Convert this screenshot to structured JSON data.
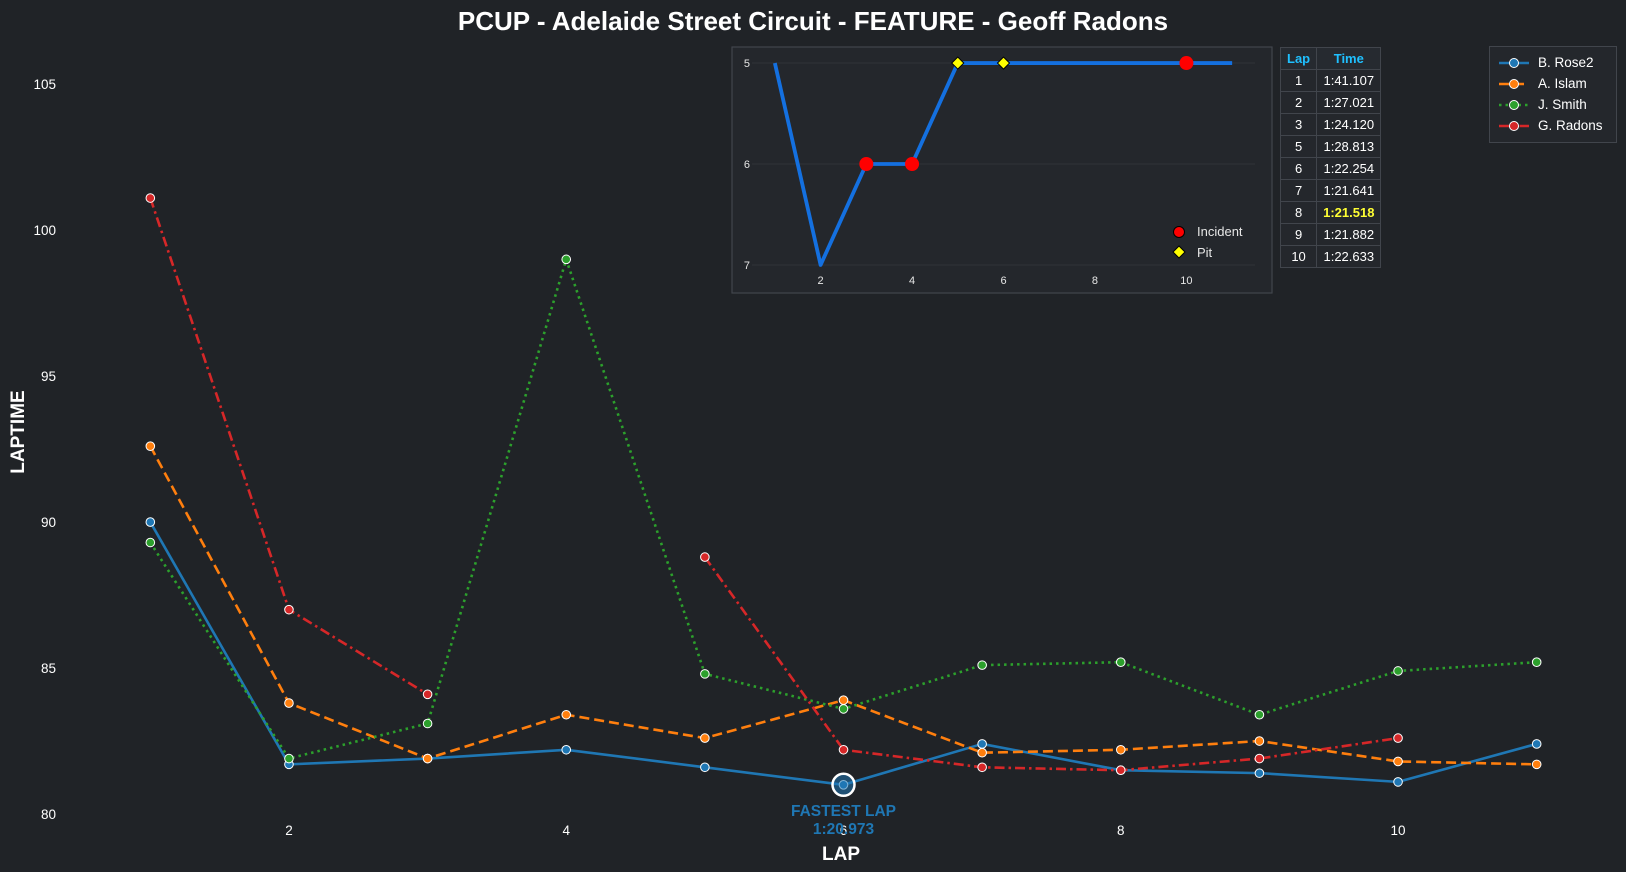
{
  "chart_data": [
    {
      "type": "line",
      "title": "PCUP - Adelaide Street Circuit - FEATURE - Geoff Radons",
      "xlabel": "LAP",
      "ylabel": "LAPTIME",
      "x": [
        1,
        2,
        3,
        4,
        5,
        6,
        7,
        8,
        9,
        10,
        11
      ],
      "xticks": [
        "2",
        "4",
        "6",
        "8",
        "10"
      ],
      "yticks": [
        "80",
        "85",
        "90",
        "95",
        "100",
        "105"
      ],
      "xlim": [
        0.5,
        11.5
      ],
      "ylim": [
        80,
        106
      ],
      "grid": false,
      "legend_position": "top-right",
      "series": [
        {
          "name": "B. Rose2",
          "color": "#1f77b4",
          "style": "solid",
          "values": [
            90.0,
            81.7,
            81.9,
            82.2,
            81.6,
            81.0,
            82.4,
            81.5,
            81.4,
            81.1,
            82.4
          ]
        },
        {
          "name": "A. Islam",
          "color": "#ff7f0e",
          "style": "dashed",
          "values": [
            92.6,
            83.8,
            81.9,
            83.4,
            82.6,
            83.9,
            82.1,
            82.2,
            82.5,
            81.8,
            81.7
          ]
        },
        {
          "name": "J. Smith",
          "color": "#2ca02c",
          "style": "dotted",
          "values": [
            89.3,
            81.9,
            83.1,
            99.0,
            84.8,
            83.6,
            85.1,
            85.2,
            83.4,
            84.9,
            85.2
          ]
        },
        {
          "name": "G. Radons",
          "color": "#d62728",
          "style": "dashdot",
          "values": [
            101.1,
            87.0,
            84.1,
            null,
            88.8,
            82.2,
            81.6,
            81.5,
            81.9,
            82.6,
            null
          ]
        }
      ],
      "annotations": [
        {
          "label_line1": "FASTEST LAP",
          "label_line2": "1:20.973",
          "x": 6,
          "y": 81.0,
          "color": "#1f77b4"
        }
      ]
    },
    {
      "type": "line",
      "title": "",
      "x": [
        1,
        2,
        3,
        4,
        5,
        6,
        7,
        8,
        9,
        10,
        11
      ],
      "values": [
        5,
        7,
        6,
        6,
        5,
        5,
        5,
        5,
        5,
        5,
        5
      ],
      "y_inverted": true,
      "xticks": [
        "2",
        "4",
        "6",
        "8",
        "10"
      ],
      "yticks": [
        "5",
        "6",
        "7"
      ],
      "xlim": [
        0.5,
        11.5
      ],
      "ylim": [
        7.05,
        4.95
      ],
      "color": "#1470e0",
      "incidents": [
        3,
        4,
        10
      ],
      "pits": [
        5,
        6
      ],
      "legend": {
        "incident": "Incident",
        "pit": "Pit"
      }
    }
  ],
  "lap_table": {
    "headers": [
      "Lap",
      "Time"
    ],
    "rows": [
      [
        "1",
        "1:41.107"
      ],
      [
        "2",
        "1:27.021"
      ],
      [
        "3",
        "1:24.120"
      ],
      [
        "5",
        "1:28.813"
      ],
      [
        "6",
        "1:22.254"
      ],
      [
        "7",
        "1:21.641"
      ],
      [
        "8",
        "1:21.518"
      ],
      [
        "9",
        "1:21.882"
      ],
      [
        "10",
        "1:22.633"
      ]
    ],
    "best_lap": "8",
    "header_color": "#1fc0ff",
    "best_color": "#ffff33"
  }
}
